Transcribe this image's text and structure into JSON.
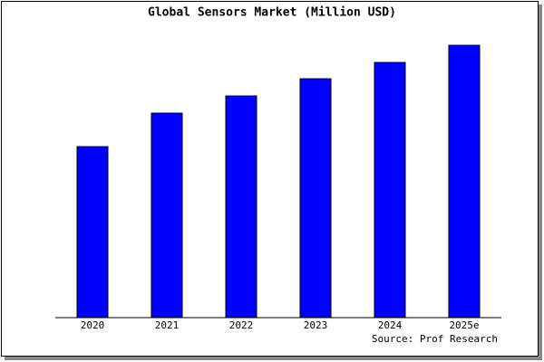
{
  "chart_data": {
    "type": "bar",
    "title": "Global Sensors Market (Million USD)",
    "categories": [
      "2020",
      "2021",
      "2022",
      "2023",
      "2024",
      "2025e"
    ],
    "values": [
      189,
      226,
      245,
      264,
      282,
      301
    ],
    "color": "#0000ff",
    "ylim": [
      0,
      304
    ],
    "source": "Source: Prof Research"
  }
}
